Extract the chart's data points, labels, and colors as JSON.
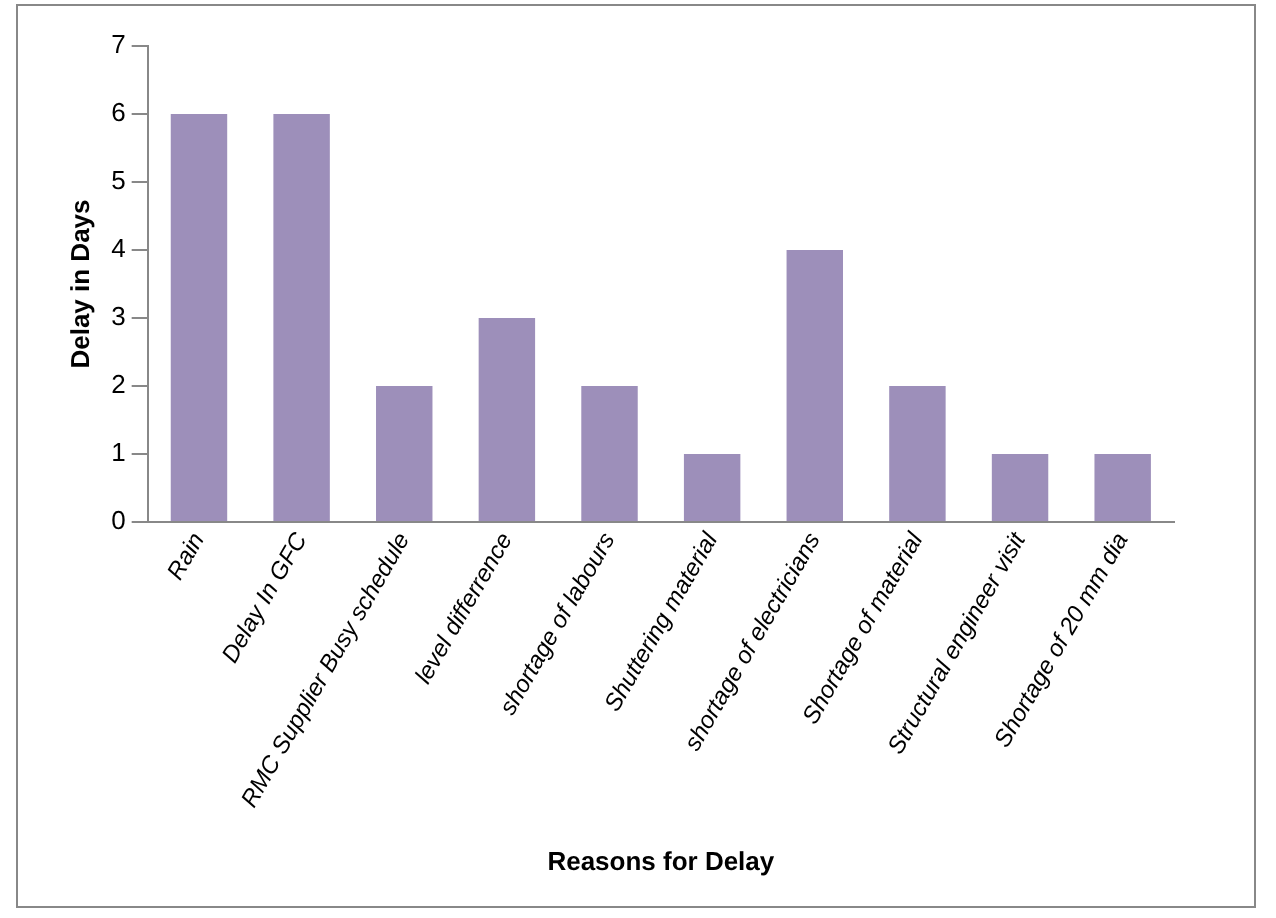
{
  "chart_data": {
    "type": "bar",
    "xlabel": "Reasons for Delay",
    "ylabel": "Delay in Days",
    "categories": [
      "Rain",
      "Delay In GFC",
      "RMC Supplier Busy schedule",
      "level differrence",
      "shortage of labours",
      "Shuttering material",
      "shortage of electricians",
      "Shortage of material",
      "Structural engineer visit",
      "Shortage of 20 mm dia"
    ],
    "values": [
      6,
      6,
      2,
      3,
      2,
      1,
      4,
      2,
      1,
      1
    ],
    "color": "#9d8fba",
    "ylim": [
      0,
      7
    ],
    "yticks": [
      0,
      1,
      2,
      3,
      4,
      5,
      6,
      7
    ],
    "grid": false,
    "legend": false
  }
}
